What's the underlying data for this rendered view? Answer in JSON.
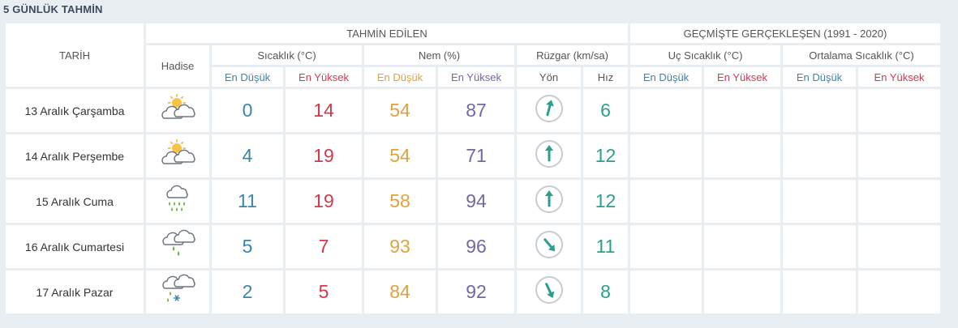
{
  "title": "5 GÜNLÜK TAHMİN",
  "headers": {
    "tarih": "TARİH",
    "hadise": "Hadise",
    "tahmin": "TAHMİN EDİLEN",
    "gecmis": "GEÇMİŞTE GERÇEKLEŞEN (1991 - 2020)",
    "sicaklik": "Sıcaklık (°C)",
    "nem": "Nem (%)",
    "ruzgar": "Rüzgar (km/sa)",
    "uc_sicaklik": "Uç Sıcaklık (°C)",
    "ort_sicaklik": "Ortalama Sıcaklık (°C)",
    "en_dusuk": "En Düşük",
    "en_yuksek": "En Yüksek",
    "yon": "Yön",
    "hiz": "Hız"
  },
  "colors": {
    "low": "#3a84ad",
    "high": "#d1394f",
    "humidity_low": "#e0a23e",
    "humidity_high": "#7467a5",
    "wind": "#2c9f8c"
  },
  "rows": [
    {
      "date": "13 Aralık Çarşamba",
      "icon": "partly-sunny-icon",
      "t_min": "0",
      "t_max": "14",
      "h_min": "54",
      "h_max": "87",
      "wind_dir": "north-northeast",
      "wind_deg": 15,
      "wind_speed": "6"
    },
    {
      "date": "14 Aralık Perşembe",
      "icon": "partly-sunny-icon",
      "t_min": "4",
      "t_max": "19",
      "h_min": "54",
      "h_max": "71",
      "wind_dir": "north",
      "wind_deg": 0,
      "wind_speed": "12"
    },
    {
      "date": "15 Aralık Cuma",
      "icon": "heavy-rain-icon",
      "t_min": "11",
      "t_max": "19",
      "h_min": "58",
      "h_max": "94",
      "wind_dir": "north",
      "wind_deg": 0,
      "wind_speed": "12"
    },
    {
      "date": "16 Aralık Cumartesi",
      "icon": "light-rain-icon",
      "t_min": "5",
      "t_max": "7",
      "h_min": "93",
      "h_max": "96",
      "wind_dir": "southeast",
      "wind_deg": 140,
      "wind_speed": "11"
    },
    {
      "date": "17 Aralık Pazar",
      "icon": "sleet-icon",
      "t_min": "2",
      "t_max": "5",
      "h_min": "84",
      "h_max": "92",
      "wind_dir": "south-southeast",
      "wind_deg": 155,
      "wind_speed": "8"
    }
  ]
}
